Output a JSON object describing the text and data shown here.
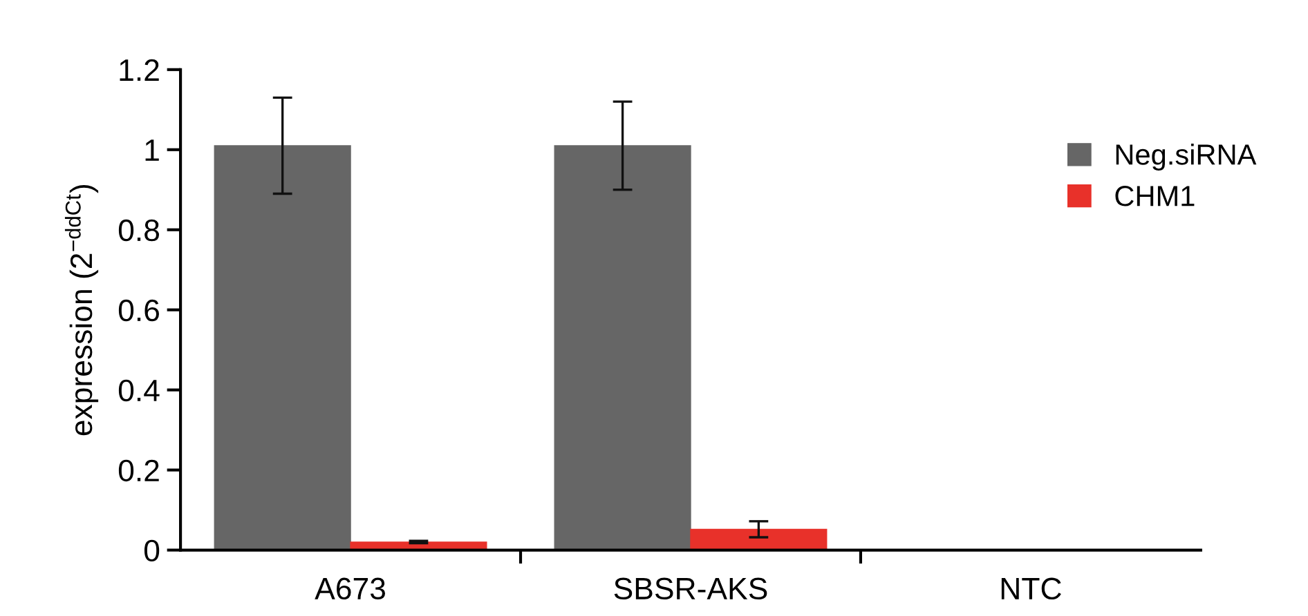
{
  "chart_data": {
    "type": "bar",
    "ylabel": "expression (2$^{−ddCt}$)",
    "categories": [
      "A673",
      "SBSR-AKS",
      "NTC"
    ],
    "series": [
      {
        "name": "Neg.siRNA",
        "color": "#666666",
        "values": [
          1.01,
          1.01,
          0
        ],
        "errors": [
          0.12,
          0.11,
          null
        ]
      },
      {
        "name": "CHM1",
        "color": "#e8312a",
        "values": [
          0.02,
          0.052,
          0
        ],
        "errors": [
          0.003,
          0.02,
          null
        ]
      }
    ],
    "ylim": [
      0,
      1.2
    ],
    "yticks": [
      0,
      0.2,
      0.4,
      0.6,
      0.8,
      1,
      1.2
    ],
    "grid": false,
    "legend": "top right"
  }
}
